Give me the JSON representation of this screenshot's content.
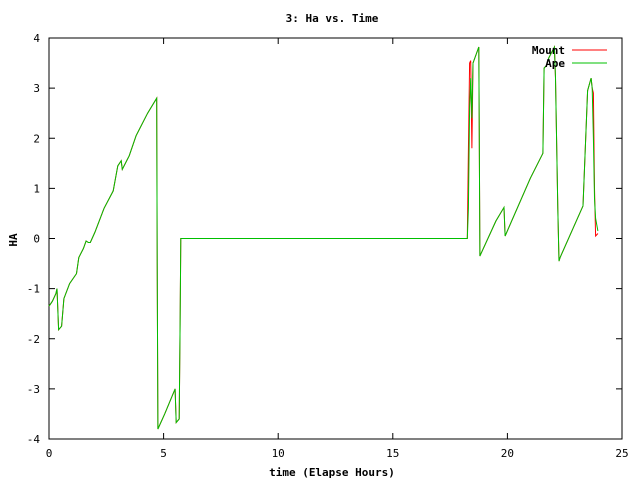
{
  "chart_data": {
    "type": "line",
    "title": "3: Ha vs. Time",
    "xlabel": "time (Elapse Hours)",
    "ylabel": "HA",
    "xlim": [
      0,
      25
    ],
    "ylim": [
      -4,
      4
    ],
    "xticks": [
      0,
      5,
      10,
      15,
      20,
      25
    ],
    "yticks": [
      -4,
      -3,
      -2,
      -1,
      0,
      1,
      2,
      3,
      4
    ],
    "grid": false,
    "legend_position": "top-right",
    "series": [
      {
        "name": "Mount",
        "color": "#ff0000",
        "points": [
          [
            0.0,
            -1.35
          ],
          [
            0.15,
            -1.25
          ],
          [
            0.3,
            -1.1
          ],
          [
            0.35,
            -1.0
          ],
          [
            0.42,
            -1.82
          ],
          [
            0.55,
            -1.75
          ],
          [
            0.65,
            -1.2
          ],
          [
            0.9,
            -0.9
          ],
          [
            1.2,
            -0.7
          ],
          [
            1.3,
            -0.38
          ],
          [
            1.5,
            -0.2
          ],
          [
            1.62,
            -0.05
          ],
          [
            1.72,
            -0.08
          ],
          [
            1.8,
            -0.08
          ],
          [
            2.0,
            0.12
          ],
          [
            2.4,
            0.6
          ],
          [
            2.8,
            0.95
          ],
          [
            2.9,
            1.2
          ],
          [
            3.0,
            1.45
          ],
          [
            3.15,
            1.55
          ],
          [
            3.2,
            1.38
          ],
          [
            3.5,
            1.65
          ],
          [
            3.8,
            2.05
          ],
          [
            4.3,
            2.5
          ],
          [
            4.7,
            2.8
          ],
          [
            4.72,
            -0.5
          ],
          [
            4.75,
            -3.8
          ],
          [
            5.05,
            -3.5
          ],
          [
            5.5,
            -3.0
          ],
          [
            5.55,
            -3.67
          ],
          [
            5.68,
            -3.6
          ],
          [
            5.72,
            -1.7
          ],
          [
            5.75,
            0.0
          ],
          [
            18.25,
            0.0
          ],
          [
            18.3,
            1.75
          ],
          [
            18.35,
            3.5
          ],
          [
            18.4,
            3.55
          ],
          [
            18.45,
            1.8
          ],
          [
            18.5,
            3.5
          ],
          [
            18.75,
            3.82
          ],
          [
            18.8,
            -0.35
          ],
          [
            19.5,
            0.35
          ],
          [
            19.85,
            0.62
          ],
          [
            19.9,
            0.05
          ],
          [
            21.0,
            1.2
          ],
          [
            21.55,
            1.7
          ],
          [
            21.6,
            3.4
          ],
          [
            21.7,
            3.45
          ],
          [
            21.8,
            3.6
          ],
          [
            22.05,
            3.82
          ],
          [
            22.1,
            3.2
          ],
          [
            22.2,
            0.6
          ],
          [
            22.25,
            -0.45
          ],
          [
            22.3,
            -0.38
          ],
          [
            23.3,
            0.65
          ],
          [
            23.5,
            2.95
          ],
          [
            23.65,
            3.2
          ],
          [
            23.7,
            3.0
          ],
          [
            23.75,
            2.9
          ],
          [
            23.8,
            1.0
          ],
          [
            23.85,
            0.05
          ],
          [
            23.95,
            0.1
          ]
        ]
      },
      {
        "name": "Ape",
        "color": "#00c000",
        "points": [
          [
            0.0,
            -1.35
          ],
          [
            0.15,
            -1.25
          ],
          [
            0.3,
            -1.1
          ],
          [
            0.35,
            -1.0
          ],
          [
            0.42,
            -1.82
          ],
          [
            0.55,
            -1.75
          ],
          [
            0.65,
            -1.2
          ],
          [
            0.9,
            -0.9
          ],
          [
            1.2,
            -0.7
          ],
          [
            1.3,
            -0.38
          ],
          [
            1.5,
            -0.2
          ],
          [
            1.62,
            -0.05
          ],
          [
            1.72,
            -0.08
          ],
          [
            1.8,
            -0.08
          ],
          [
            2.0,
            0.12
          ],
          [
            2.4,
            0.6
          ],
          [
            2.8,
            0.95
          ],
          [
            2.9,
            1.2
          ],
          [
            3.0,
            1.45
          ],
          [
            3.15,
            1.55
          ],
          [
            3.2,
            1.38
          ],
          [
            3.5,
            1.65
          ],
          [
            3.8,
            2.05
          ],
          [
            4.3,
            2.5
          ],
          [
            4.7,
            2.8
          ],
          [
            4.72,
            -0.5
          ],
          [
            4.75,
            -3.8
          ],
          [
            5.05,
            -3.5
          ],
          [
            5.5,
            -3.0
          ],
          [
            5.55,
            -3.67
          ],
          [
            5.68,
            -3.6
          ],
          [
            5.72,
            -1.7
          ],
          [
            5.75,
            0.0
          ],
          [
            18.25,
            0.0
          ],
          [
            18.3,
            0.6
          ],
          [
            18.35,
            2.6
          ],
          [
            18.4,
            3.2
          ],
          [
            18.45,
            2.4
          ],
          [
            18.5,
            3.5
          ],
          [
            18.75,
            3.82
          ],
          [
            18.8,
            -0.35
          ],
          [
            19.5,
            0.35
          ],
          [
            19.85,
            0.62
          ],
          [
            19.9,
            0.05
          ],
          [
            21.0,
            1.2
          ],
          [
            21.55,
            1.7
          ],
          [
            21.6,
            3.4
          ],
          [
            21.7,
            3.45
          ],
          [
            21.8,
            3.6
          ],
          [
            22.05,
            3.82
          ],
          [
            22.1,
            3.2
          ],
          [
            22.2,
            0.6
          ],
          [
            22.25,
            -0.45
          ],
          [
            22.3,
            -0.38
          ],
          [
            23.3,
            0.65
          ],
          [
            23.5,
            2.95
          ],
          [
            23.65,
            3.2
          ],
          [
            23.7,
            3.0
          ],
          [
            23.75,
            2.0
          ],
          [
            23.8,
            0.8
          ],
          [
            23.85,
            0.4
          ],
          [
            23.95,
            0.15
          ]
        ]
      }
    ]
  }
}
